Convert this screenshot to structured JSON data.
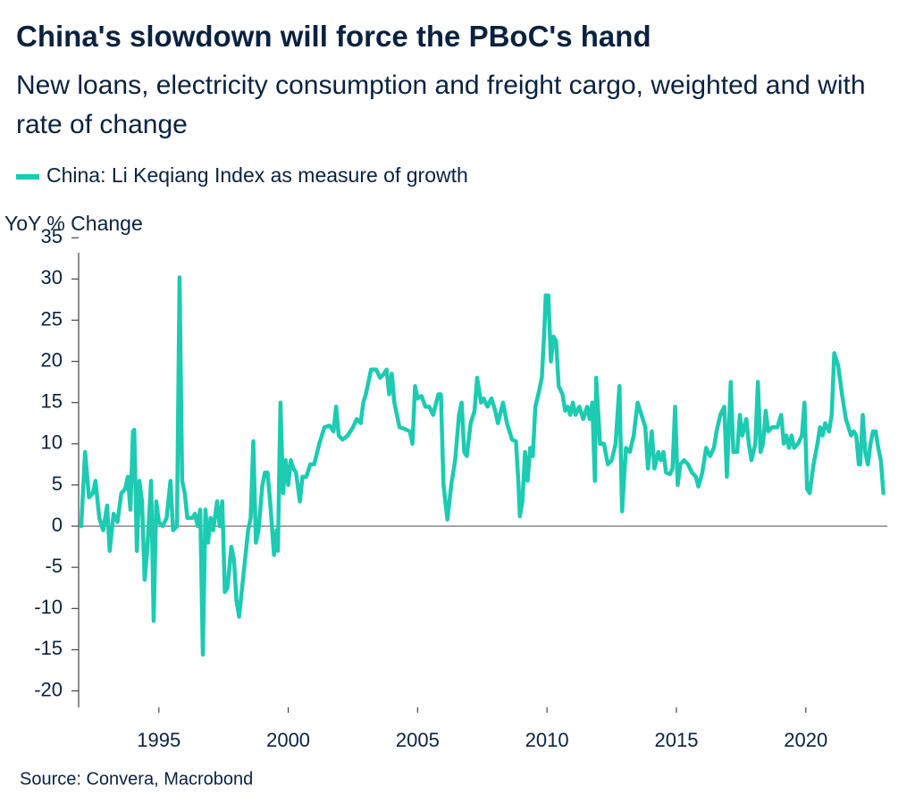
{
  "chart_data": {
    "type": "line",
    "title": "China's slowdown will force the PBoC's hand",
    "subtitle": "New loans, electricity consumption and freight cargo, weighted and with rate of change",
    "y_label": "YoY % Change",
    "source": "Source: Convera, Macrobond",
    "x": [
      1992.0,
      1992.15,
      1992.3,
      1992.45,
      1992.55,
      1992.7,
      1992.85,
      1993.0,
      1993.1,
      1993.25,
      1993.4,
      1993.55,
      1993.7,
      1993.8,
      1993.9,
      1994.0,
      1994.05,
      1994.15,
      1994.25,
      1994.35,
      1994.45,
      1994.55,
      1994.7,
      1994.8,
      1994.9,
      1995.0,
      1995.15,
      1995.3,
      1995.45,
      1995.55,
      1995.7,
      1995.8,
      1995.9,
      1996.0,
      1996.1,
      1996.3,
      1996.4,
      1996.5,
      1996.6,
      1996.7,
      1996.8,
      1996.9,
      1997.0,
      1997.1,
      1997.25,
      1997.35,
      1997.45,
      1997.55,
      1997.65,
      1997.8,
      1997.9,
      1998.0,
      1998.1,
      1998.3,
      1998.45,
      1998.55,
      1998.65,
      1998.75,
      1998.85,
      1999.0,
      1999.1,
      1999.2,
      1999.3,
      1999.45,
      1999.55,
      1999.6,
      1999.7,
      1999.8,
      1999.9,
      2000.0,
      2000.1,
      2000.2,
      2000.3,
      2000.45,
      2000.55,
      2000.7,
      2000.85,
      2001.0,
      2001.2,
      2001.4,
      2001.6,
      2001.75,
      2001.85,
      2001.95,
      2002.1,
      2002.3,
      2002.5,
      2002.65,
      2002.8,
      2002.9,
      2003.0,
      2003.2,
      2003.4,
      2003.55,
      2003.7,
      2003.8,
      2003.9,
      2004.0,
      2004.1,
      2004.3,
      2004.5,
      2004.7,
      2004.8,
      2004.9,
      2005.0,
      2005.15,
      2005.3,
      2005.45,
      2005.6,
      2005.8,
      2005.9,
      2006.0,
      2006.15,
      2006.3,
      2006.45,
      2006.6,
      2006.7,
      2006.8,
      2006.9,
      2007.05,
      2007.2,
      2007.3,
      2007.45,
      2007.55,
      2007.7,
      2007.85,
      2008.0,
      2008.1,
      2008.3,
      2008.45,
      2008.55,
      2008.65,
      2008.8,
      2008.9,
      2008.95,
      2009.05,
      2009.15,
      2009.25,
      2009.35,
      2009.45,
      2009.55,
      2009.7,
      2009.8,
      2009.9,
      2009.95,
      2010.05,
      2010.15,
      2010.25,
      2010.35,
      2010.45,
      2010.6,
      2010.7,
      2010.8,
      2010.9,
      2011.0,
      2011.1,
      2011.25,
      2011.4,
      2011.55,
      2011.65,
      2011.75,
      2011.85,
      2011.9,
      2012.05,
      2012.2,
      2012.35,
      2012.5,
      2012.65,
      2012.8,
      2012.9,
      2013.05,
      2013.2,
      2013.35,
      2013.5,
      2013.65,
      2013.8,
      2013.9,
      2014.05,
      2014.15,
      2014.3,
      2014.4,
      2014.5,
      2014.6,
      2014.75,
      2014.85,
      2014.95,
      2015.05,
      2015.15,
      2015.3,
      2015.45,
      2015.6,
      2015.75,
      2015.85,
      2016.0,
      2016.15,
      2016.3,
      2016.45,
      2016.55,
      2016.7,
      2016.85,
      2016.95,
      2017.1,
      2017.2,
      2017.35,
      2017.45,
      2017.55,
      2017.7,
      2017.8,
      2017.9,
      2018.05,
      2018.15,
      2018.25,
      2018.35,
      2018.45,
      2018.55,
      2018.7,
      2018.9,
      2019.05,
      2019.15,
      2019.25,
      2019.35,
      2019.45,
      2019.55,
      2019.7,
      2019.85,
      2019.95,
      2020.05,
      2020.15,
      2020.3,
      2020.45,
      2020.55,
      2020.65,
      2020.75,
      2020.9,
      2021.0,
      2021.1,
      2021.25,
      2021.4,
      2021.55,
      2021.65,
      2021.75,
      2021.85,
      2021.95,
      2022.05,
      2022.1,
      2022.2,
      2022.3,
      2022.4,
      2022.5,
      2022.6,
      2022.7,
      2022.8,
      2022.9,
      2023.0
    ],
    "series": [
      {
        "name": "China: Li Keqiang Index as measure of growth",
        "color": "#1ccbb1",
        "values": [
          0,
          9,
          3.5,
          4,
          5.5,
          1,
          -0.5,
          2.5,
          -3,
          1.5,
          0.5,
          4,
          4.5,
          6,
          2,
          11.5,
          11.7,
          -3,
          5.5,
          3,
          -6.5,
          -3,
          5.5,
          -11.5,
          3,
          0.5,
          0,
          1,
          5.5,
          -0.5,
          0,
          30.2,
          5.5,
          4,
          1,
          1,
          1.5,
          0,
          2,
          -15.6,
          2,
          -2,
          1,
          -0.5,
          3,
          0,
          3,
          -8,
          -7.5,
          -2.5,
          -4,
          -9,
          -11,
          -5,
          -0.5,
          1,
          10.3,
          -2,
          -0.5,
          5,
          6.5,
          6.5,
          3,
          -3.5,
          -0.5,
          -3,
          15,
          4,
          8,
          5,
          8,
          7,
          6.5,
          3,
          6,
          6,
          7.5,
          7.5,
          10,
          12,
          12.2,
          11.5,
          14.5,
          11,
          10.5,
          11,
          12,
          13,
          12.5,
          15,
          16,
          19,
          19,
          18,
          18.5,
          19,
          16,
          18.5,
          15,
          12,
          11.8,
          11.5,
          10,
          17,
          15.5,
          15.8,
          14.5,
          14.5,
          13.5,
          16,
          16,
          5,
          0.8,
          5,
          8,
          13.5,
          15,
          9,
          8.5,
          12.5,
          14,
          18,
          15,
          15.5,
          14.5,
          15.5,
          14,
          12.5,
          15,
          12.5,
          11.5,
          10.5,
          10.3,
          5,
          1.2,
          3,
          9,
          5.5,
          9.5,
          8.5,
          14.5,
          16.5,
          18,
          24,
          28,
          28,
          20,
          23,
          22.5,
          17,
          16,
          14,
          14.5,
          13.5,
          15,
          13.5,
          14.5,
          13,
          14.5,
          13,
          15,
          5.5,
          18,
          10,
          10,
          7.5,
          8,
          10,
          17,
          1.8,
          9.5,
          9,
          11,
          15,
          13.5,
          12,
          7,
          11.5,
          7,
          9,
          8,
          9,
          6.5,
          6.3,
          7,
          14.5,
          5,
          7.5,
          8,
          7.5,
          6.5,
          6,
          4.8,
          6.5,
          9.5,
          8.5,
          9.5,
          11.5,
          13.5,
          14.5,
          6,
          17.5,
          9,
          9,
          13.5,
          11,
          13,
          10,
          8,
          10,
          17.5,
          9,
          10,
          14,
          11.5,
          12,
          12,
          13.5,
          10,
          11,
          9.5,
          11,
          9.5,
          10,
          11,
          15,
          4.5,
          4,
          7.5,
          10,
          12,
          11,
          12.5,
          11.5,
          13.5,
          21,
          19.5,
          16,
          13,
          12,
          11,
          11.5,
          11,
          7.5,
          7.5,
          13.5,
          9,
          7.5,
          10,
          11.5,
          11.5,
          9.5,
          8,
          4
        ]
      }
    ],
    "xlim": [
      1991.9,
      2023.15
    ],
    "xticks": [
      1995,
      2000,
      2005,
      2010,
      2015,
      2020
    ],
    "ylim": [
      -22,
      36
    ],
    "yticks": [
      -20,
      -15,
      -10,
      -5,
      0,
      5,
      10,
      15,
      20,
      25,
      30,
      35
    ],
    "grid": false
  }
}
